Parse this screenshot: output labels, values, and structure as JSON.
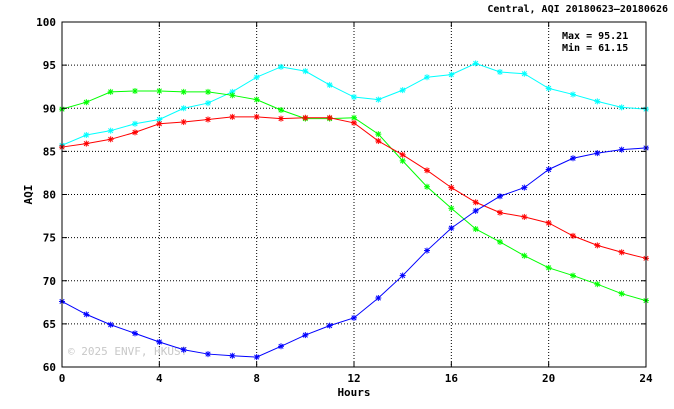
{
  "chart_data": {
    "type": "line",
    "title": "Central, AQI 20180623–20180626",
    "xlabel": "Hours",
    "ylabel": "AQI",
    "xlim": [
      0,
      24
    ],
    "ylim": [
      60,
      100
    ],
    "xticks": [
      0,
      4,
      8,
      12,
      16,
      20,
      24
    ],
    "yticks": [
      60,
      65,
      70,
      75,
      80,
      85,
      90,
      95,
      100
    ],
    "grid": true,
    "marker": "asterisk",
    "stats": {
      "max": "Max = 95.21",
      "min": "Min = 61.15"
    },
    "watermark": "© 2025  ENVF, HKUST",
    "x": [
      0,
      1,
      2,
      3,
      4,
      5,
      6,
      7,
      8,
      9,
      10,
      11,
      12,
      13,
      14,
      15,
      16,
      17,
      18,
      19,
      20,
      21,
      22,
      23,
      24
    ],
    "series": [
      {
        "color": "#00ffff",
        "values": [
          85.7,
          86.9,
          87.4,
          88.2,
          88.7,
          90.0,
          90.6,
          91.9,
          93.6,
          94.8,
          94.3,
          92.7,
          91.3,
          91.0,
          92.1,
          93.6,
          93.9,
          95.2,
          94.2,
          94.0,
          92.3,
          91.6,
          90.8,
          90.1,
          89.9
        ]
      },
      {
        "color": "#00ff00",
        "values": [
          89.9,
          90.7,
          91.9,
          92.0,
          92.0,
          91.9,
          91.9,
          91.5,
          91.0,
          89.8,
          88.8,
          88.8,
          88.9,
          87.0,
          83.9,
          80.9,
          78.4,
          76.0,
          74.5,
          72.9,
          71.5,
          70.6,
          69.6,
          68.5,
          67.7
        ]
      },
      {
        "color": "#ff0000",
        "values": [
          85.5,
          85.9,
          86.4,
          87.2,
          88.2,
          88.4,
          88.7,
          89.0,
          89.0,
          88.8,
          88.9,
          88.9,
          88.3,
          86.2,
          84.6,
          82.8,
          80.8,
          79.1,
          77.9,
          77.4,
          76.7,
          75.2,
          74.1,
          73.3,
          72.6
        ]
      },
      {
        "color": "#0000ff",
        "values": [
          67.6,
          66.1,
          64.9,
          63.9,
          62.9,
          62.0,
          61.5,
          61.3,
          61.15,
          62.4,
          63.7,
          64.8,
          65.7,
          68.0,
          70.6,
          73.5,
          76.1,
          78.1,
          79.8,
          80.8,
          82.9,
          84.2,
          84.8,
          85.2,
          85.4
        ]
      }
    ]
  }
}
